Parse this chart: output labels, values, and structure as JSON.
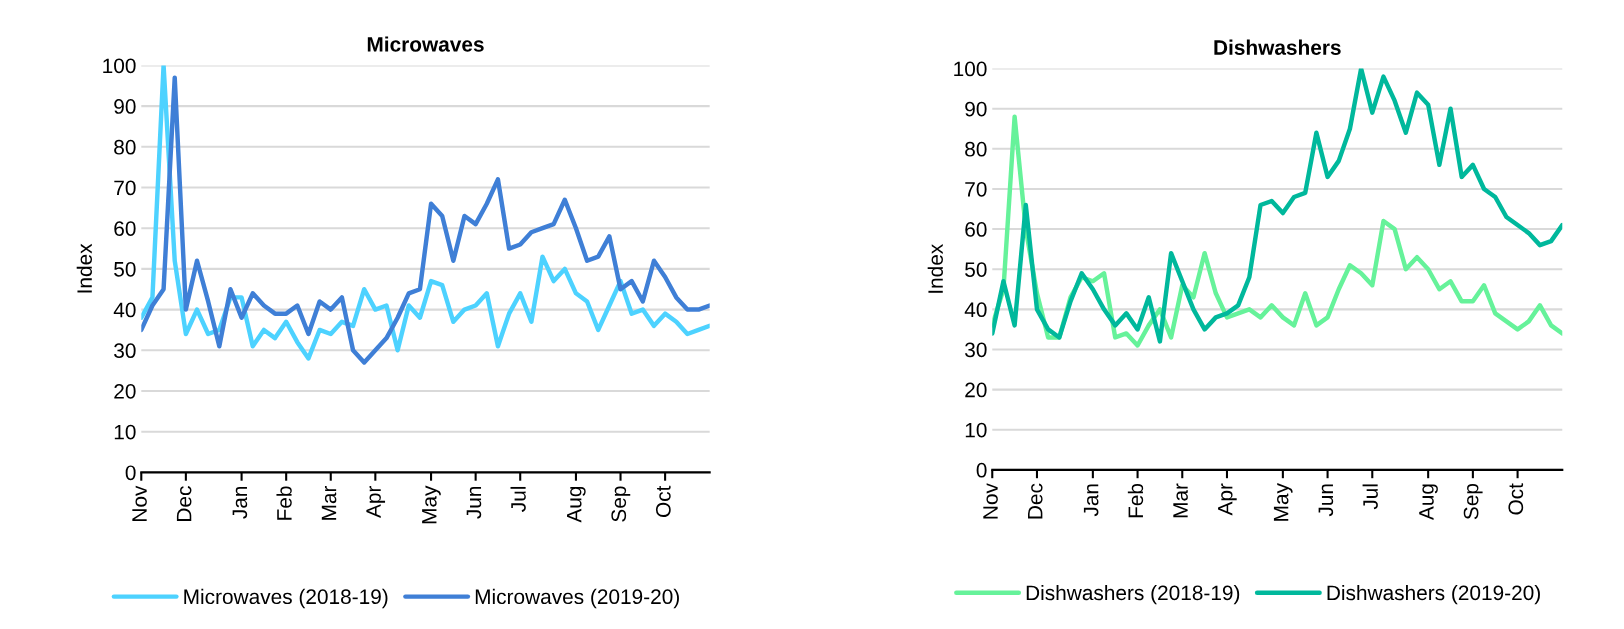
{
  "chart_data": [
    {
      "type": "line",
      "title": "Microwaves",
      "ylabel": "Index",
      "categories": [
        "Nov",
        null,
        null,
        null,
        "Dec",
        null,
        null,
        null,
        null,
        "Jan",
        null,
        null,
        null,
        "Feb",
        null,
        null,
        null,
        "Mar",
        null,
        null,
        null,
        "Apr",
        null,
        null,
        null,
        null,
        "May",
        null,
        null,
        null,
        "Jun",
        null,
        null,
        null,
        "Jul",
        null,
        null,
        null,
        null,
        "Aug",
        null,
        null,
        null,
        "Sep",
        null,
        null,
        null,
        "Oct",
        null,
        null,
        null,
        null
      ],
      "series": [
        {
          "name": "Microwaves (2018-19)",
          "color": "#4dd2ff",
          "values": [
            38,
            43,
            100,
            52,
            34,
            40,
            34,
            35,
            43,
            43,
            31,
            35,
            33,
            37,
            32,
            28,
            35,
            34,
            37,
            36,
            45,
            40,
            41,
            30,
            41,
            38,
            47,
            46,
            37,
            40,
            41,
            44,
            31,
            39,
            44,
            37,
            53,
            47,
            50,
            44,
            42,
            35,
            41,
            47,
            39,
            40,
            36,
            39,
            37,
            34,
            35,
            36
          ]
        },
        {
          "name": "Microwaves (2019-20)",
          "color": "#3f7fd6",
          "values": [
            35,
            41,
            45,
            97,
            40,
            52,
            42,
            31,
            45,
            38,
            44,
            41,
            39,
            39,
            41,
            34,
            42,
            40,
            43,
            30,
            27,
            30,
            33,
            38,
            44,
            45,
            66,
            63,
            52,
            63,
            61,
            66,
            72,
            55,
            56,
            59,
            60,
            61,
            67,
            60,
            52,
            53,
            58,
            45,
            47,
            42,
            52,
            48,
            43,
            40,
            40,
            41
          ]
        }
      ],
      "ylim": [
        0,
        100
      ],
      "yticks": [
        0,
        10,
        20,
        30,
        40,
        50,
        60,
        70,
        80,
        90,
        100
      ],
      "grid": "y",
      "legend": "bottom",
      "marker": "none",
      "line_style": "solid"
    },
    {
      "type": "line",
      "title": "Dishwashers",
      "ylabel": "Index",
      "categories": [
        "Nov",
        null,
        null,
        null,
        "Dec",
        null,
        null,
        null,
        null,
        "Jan",
        null,
        null,
        null,
        "Feb",
        null,
        null,
        null,
        "Mar",
        null,
        null,
        null,
        "Apr",
        null,
        null,
        null,
        null,
        "May",
        null,
        null,
        null,
        "Jun",
        null,
        null,
        null,
        "Jul",
        null,
        null,
        null,
        null,
        "Aug",
        null,
        null,
        null,
        "Sep",
        null,
        null,
        null,
        "Oct",
        null,
        null,
        null,
        null
      ],
      "series": [
        {
          "name": "Dishwashers (2018-19)",
          "color": "#66f29a",
          "values": [
            36,
            45,
            88,
            60,
            44,
            33,
            33,
            43,
            48,
            47,
            49,
            33,
            34,
            31,
            36,
            40,
            33,
            46,
            43,
            54,
            44,
            38,
            39,
            40,
            38,
            41,
            38,
            36,
            44,
            36,
            38,
            45,
            51,
            49,
            46,
            62,
            60,
            50,
            53,
            50,
            45,
            47,
            42,
            42,
            46,
            39,
            37,
            35,
            37,
            41,
            36,
            34
          ]
        },
        {
          "name": "Dishwashers (2019-20)",
          "color": "#00b89c",
          "values": [
            34,
            47,
            36,
            66,
            40,
            35,
            33,
            42,
            49,
            45,
            40,
            36,
            39,
            35,
            43,
            32,
            54,
            47,
            40,
            35,
            38,
            39,
            41,
            48,
            66,
            67,
            64,
            68,
            69,
            84,
            73,
            77,
            85,
            100,
            89,
            98,
            92,
            84,
            94,
            91,
            76,
            90,
            73,
            76,
            70,
            68,
            63,
            61,
            59,
            56,
            57,
            61
          ]
        }
      ],
      "ylim": [
        0,
        100
      ],
      "yticks": [
        0,
        10,
        20,
        30,
        40,
        50,
        60,
        70,
        80,
        90,
        100
      ],
      "grid": "y",
      "legend": "bottom",
      "marker": "none",
      "line_style": "solid"
    }
  ]
}
